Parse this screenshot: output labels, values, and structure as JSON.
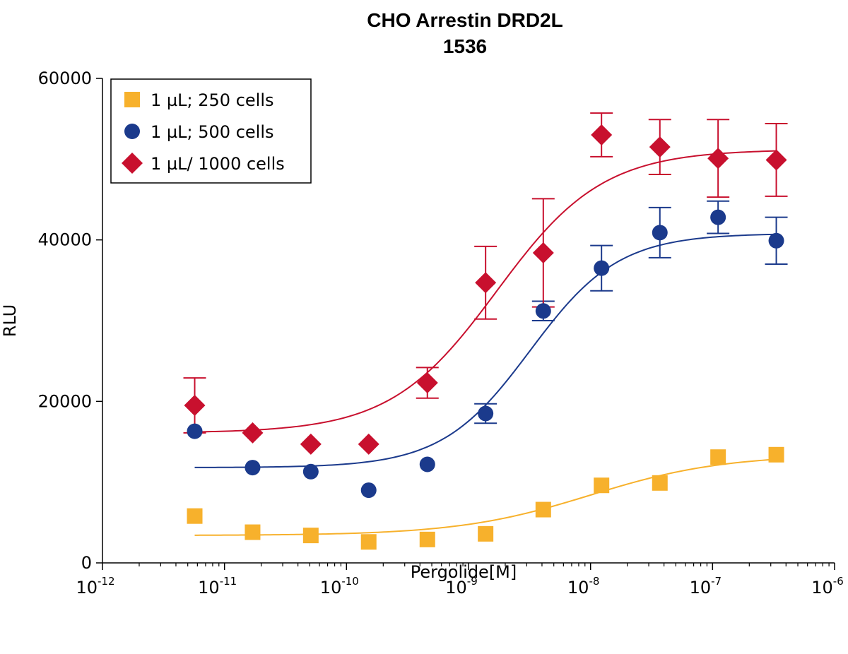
{
  "chart_data": {
    "type": "scatter",
    "title": "CHO Arrestin DRD2L",
    "subtitle": "1536",
    "xlabel": "Pergolide[M]",
    "ylabel": "RLU",
    "xscale": "log",
    "xlim": [
      1e-12,
      1e-06
    ],
    "ylim": [
      0,
      60000
    ],
    "grid": false,
    "legend_position": "top-left",
    "x_ticks": [
      {
        "base": "10",
        "exp": "-12"
      },
      {
        "base": "10",
        "exp": "-11"
      },
      {
        "base": "10",
        "exp": "-10"
      },
      {
        "base": "10",
        "exp": "-9"
      },
      {
        "base": "10",
        "exp": "-8"
      },
      {
        "base": "10",
        "exp": "-7"
      },
      {
        "base": "10",
        "exp": "-6"
      }
    ],
    "y_ticks": [
      "0",
      "20000",
      "40000",
      "60000"
    ],
    "y_tick_values": [
      0,
      20000,
      40000,
      60000
    ],
    "series": [
      {
        "name": "1 µL; 250 cells",
        "marker": "square",
        "color": "#F7B12C",
        "x": [
          5.7e-12,
          1.7e-11,
          5.1e-11,
          1.52e-10,
          4.6e-10,
          1.38e-09,
          4.1e-09,
          1.23e-08,
          3.7e-08,
          1.11e-07,
          3.33e-07
        ],
        "y": [
          5800,
          3800,
          3400,
          2600,
          2900,
          3600,
          6600,
          9600,
          9900,
          13100,
          13400
        ],
        "error": [
          0,
          0,
          0,
          0,
          0,
          0,
          0,
          0,
          0,
          0,
          0
        ],
        "fit": {
          "bottom": 3400,
          "top": 13400,
          "ec50": 1e-08,
          "hill": 0.8
        }
      },
      {
        "name": "1 µL; 500 cells",
        "marker": "circle",
        "color": "#1B3A8C",
        "x": [
          5.7e-12,
          1.7e-11,
          5.1e-11,
          1.52e-10,
          4.6e-10,
          1.38e-09,
          4.1e-09,
          1.23e-08,
          3.7e-08,
          1.11e-07,
          3.33e-07
        ],
        "y": [
          16300,
          11800,
          11300,
          9000,
          12200,
          18500,
          31200,
          36500,
          40900,
          42800,
          39900
        ],
        "error": [
          0,
          0,
          0,
          0,
          0,
          1200,
          1200,
          2800,
          3100,
          2000,
          2900
        ],
        "fit": {
          "bottom": 11800,
          "top": 40800,
          "ec50": 3.2e-09,
          "hill": 1.2
        }
      },
      {
        "name": "1 µL/ 1000 cells",
        "marker": "diamond",
        "color": "#C8102E",
        "x": [
          5.7e-12,
          1.7e-11,
          5.1e-11,
          1.52e-10,
          4.6e-10,
          1.38e-09,
          4.1e-09,
          1.23e-08,
          3.7e-08,
          1.11e-07,
          3.33e-07
        ],
        "y": [
          19500,
          16100,
          14700,
          14700,
          22300,
          34700,
          38400,
          53000,
          51500,
          50100,
          49900
        ],
        "error": [
          3400,
          0,
          0,
          0,
          1900,
          4500,
          6700,
          2700,
          3400,
          4800,
          4500
        ],
        "fit": {
          "bottom": 16100,
          "top": 51200,
          "ec50": 1.7e-09,
          "hill": 1.0
        }
      }
    ]
  }
}
